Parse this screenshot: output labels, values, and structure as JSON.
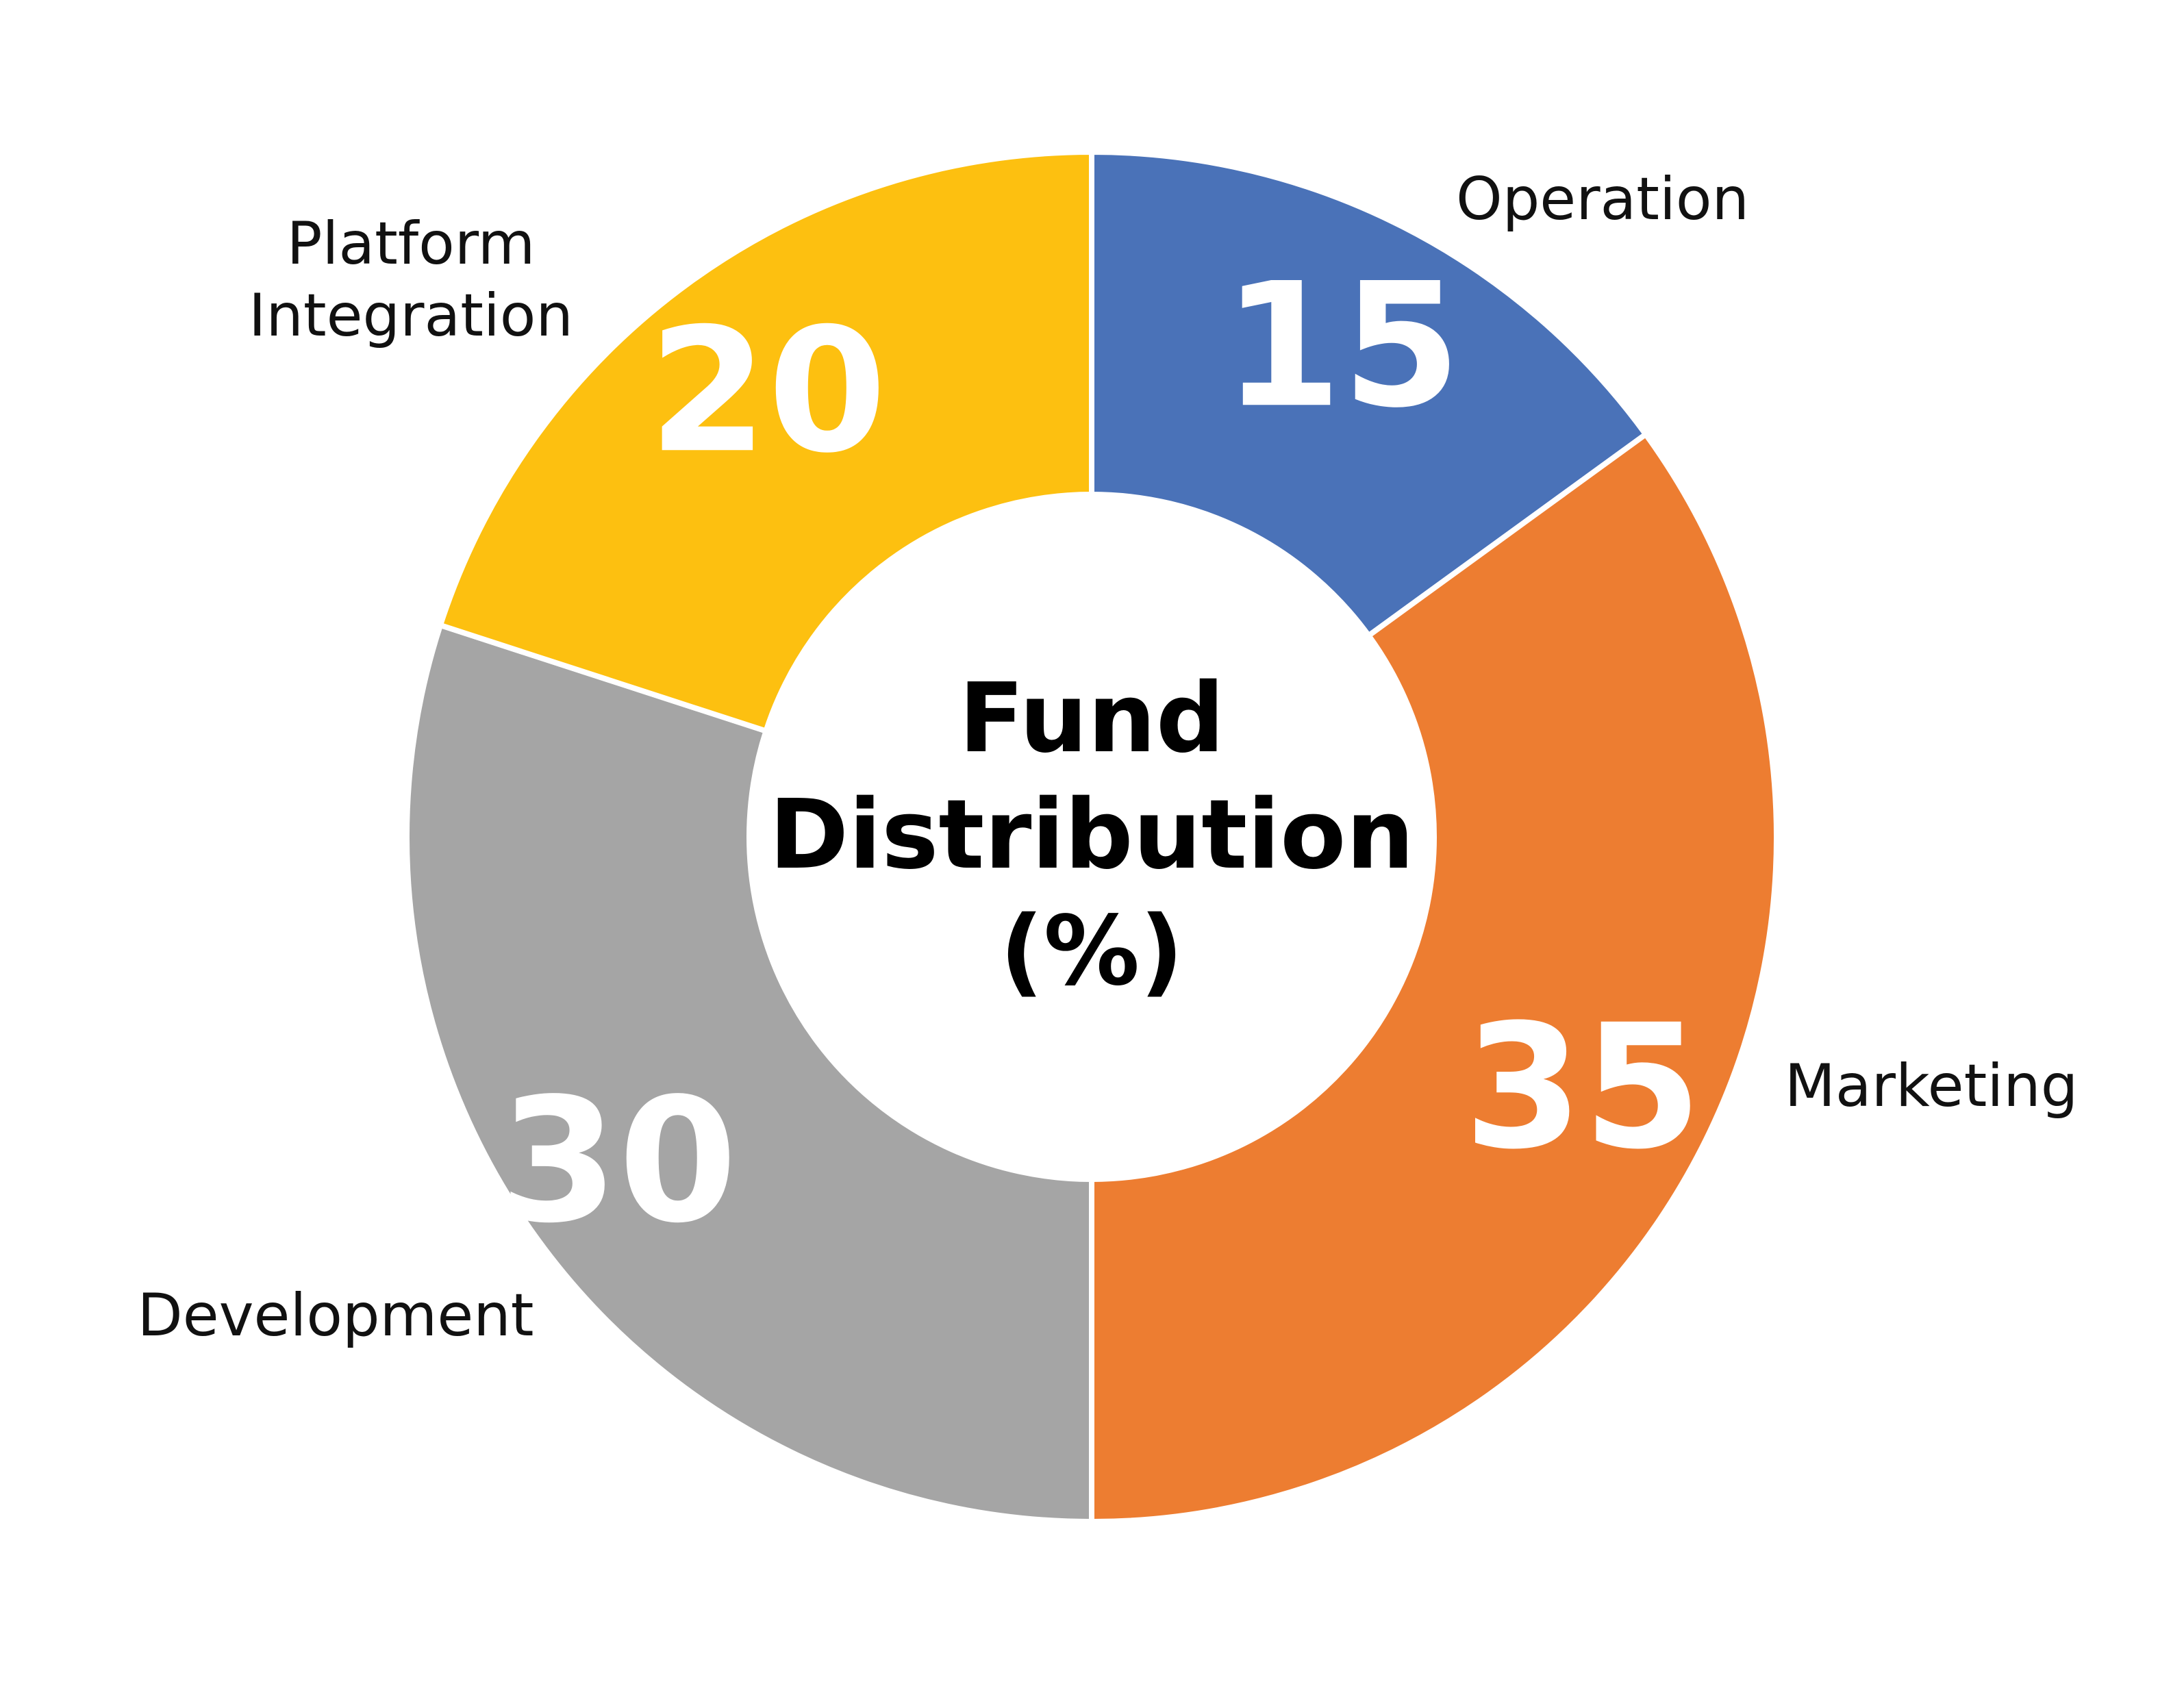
{
  "chart_data": {
    "type": "pie",
    "variant": "donut",
    "title": "Fund Distribution (%)",
    "title_lines": [
      "Fund",
      "Distribution",
      "(%)"
    ],
    "start_angle_deg": 0,
    "direction": "clockwise",
    "slices": [
      {
        "label": "Operation",
        "label_lines": [
          "Operation"
        ],
        "value": 15,
        "value_text": "15",
        "color": "#4A72B8"
      },
      {
        "label": "Marketing",
        "label_lines": [
          "Marketing"
        ],
        "value": 35,
        "value_text": "35",
        "color": "#ED7D31"
      },
      {
        "label": "Development",
        "label_lines": [
          "Development"
        ],
        "value": 30,
        "value_text": "30",
        "color": "#A5A5A5"
      },
      {
        "label": "Platform Integration",
        "label_lines": [
          "Platform",
          "Integration"
        ],
        "value": 20,
        "value_text": "20",
        "color": "#FDC010"
      }
    ]
  }
}
